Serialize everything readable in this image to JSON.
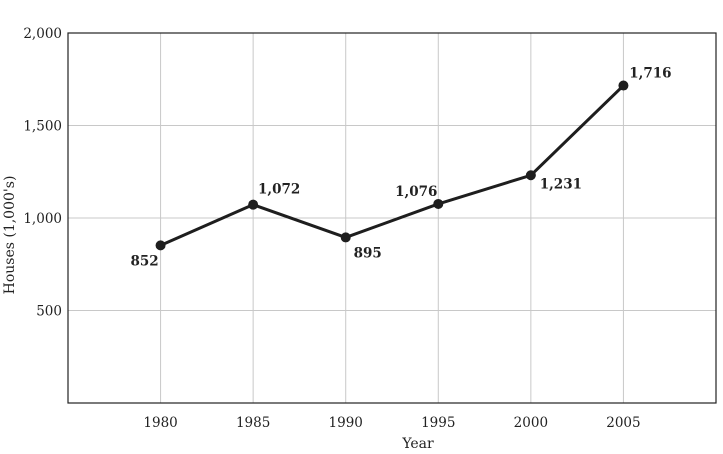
{
  "chart_data": {
    "type": "line",
    "title": "",
    "xlabel": "Year",
    "ylabel": "Houses (1,000's)",
    "x": [
      1980,
      1985,
      1990,
      1995,
      2000,
      2005
    ],
    "series": [
      {
        "values": [
          852,
          1072,
          895,
          1076,
          1231,
          1716
        ]
      }
    ],
    "data_labels": [
      "852",
      "1,072",
      "895",
      "1,076",
      "1,231",
      "1,716"
    ],
    "x_tick_labels": [
      "1980",
      "1985",
      "1990",
      "1995",
      "2000",
      "2005"
    ],
    "y_ticks": [
      500,
      1000,
      1500,
      2000
    ],
    "y_tick_labels": [
      "500",
      "1,000",
      "1,500",
      "2,000"
    ],
    "xlim": [
      1975,
      2010
    ],
    "ylim": [
      0,
      2000
    ],
    "grid": true,
    "legend": "none",
    "line_color": "#1e1e1e",
    "grid_color": "#c8c8c8"
  }
}
